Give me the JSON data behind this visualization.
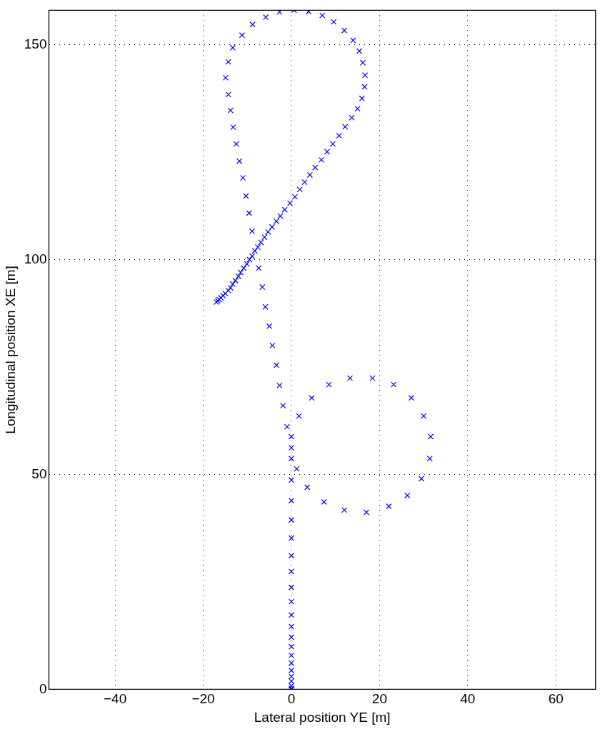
{
  "chart_data": {
    "type": "scatter",
    "xlabel": "Lateral position YE [m]",
    "ylabel": "Longitudinal position XE [m]",
    "xlim": [
      -55,
      69
    ],
    "xticks": [
      -40,
      -20,
      0,
      20,
      40,
      60
    ],
    "ylim": [
      0,
      158
    ],
    "yticks": [
      0,
      50,
      100,
      150
    ],
    "grid": true,
    "marker": "cross",
    "legend": false,
    "series": [
      {
        "color": "#0000ff",
        "x": [
          0,
          0,
          0,
          0,
          0,
          0,
          0,
          0,
          0,
          0,
          0,
          0,
          0,
          0,
          0,
          0,
          0,
          0,
          0,
          0,
          1.2,
          3.6,
          7.4,
          12.0,
          17.0,
          22.1,
          26.3,
          29.5,
          31.4,
          31.6,
          30.0,
          27.2,
          23.2,
          18.4,
          13.3,
          8.5,
          4.6,
          1.7,
          0,
          0,
          0,
          -1.0,
          -1.9,
          -2.7,
          -3.4,
          -4.3,
          -5.0,
          -5.9,
          -6.6,
          -7.4,
          -8.9,
          -9.6,
          -10.3,
          -11.0,
          -11.8,
          -12.5,
          -13.2,
          -13.8,
          -14.3,
          -14.9,
          -14.3,
          -13.3,
          -11.2,
          -8.8,
          -5.8,
          -2.7,
          0.6,
          3.9,
          7.0,
          9.6,
          12.0,
          14.0,
          15.4,
          16.2,
          16.7,
          16.6,
          16.0,
          15.0,
          13.7,
          12.2,
          10.8,
          9.4,
          8.1,
          6.8,
          5.4,
          4.2,
          3.0,
          1.9,
          0.8,
          -0.3,
          -1.5,
          -2.5,
          -3.4,
          -4.4,
          -5.3,
          -6.1,
          -6.9,
          -7.6,
          -8.3,
          -8.9,
          -9.5,
          -10.1,
          -10.8,
          -11.5,
          -12.0,
          -12.7,
          -13.3,
          -13.8,
          -14.3,
          -15.0,
          -15.5,
          -16.0,
          -16.4,
          -16.7,
          -17.0
        ],
        "values": [
          0,
          0.2,
          0.8,
          1.9,
          3.0,
          4.4,
          6.1,
          7.9,
          9.9,
          12.1,
          14.6,
          17.3,
          20.4,
          23.7,
          27.4,
          31.1,
          35.2,
          39.4,
          43.9,
          48.7,
          51.3,
          47.0,
          43.6,
          41.7,
          41.2,
          42.6,
          45.1,
          49.0,
          53.7,
          58.8,
          63.6,
          67.8,
          70.9,
          72.4,
          72.4,
          70.9,
          67.8,
          63.6,
          53.7,
          56.2,
          58.8,
          61.1,
          66.0,
          70.7,
          75.4,
          80.0,
          84.5,
          89.0,
          93.6,
          98.0,
          106.6,
          110.8,
          114.8,
          119.0,
          122.9,
          126.9,
          130.8,
          134.7,
          138.4,
          142.3,
          146.0,
          149.3,
          152.2,
          154.7,
          156.4,
          157.6,
          158.0,
          157.7,
          156.8,
          155.3,
          153.3,
          151.0,
          148.5,
          145.8,
          142.9,
          140.2,
          137.5,
          135.1,
          133.0,
          130.9,
          128.8,
          126.9,
          125.1,
          123.2,
          121.4,
          119.7,
          118.0,
          116.3,
          114.6,
          113.1,
          111.6,
          110.1,
          108.9,
          107.6,
          106.4,
          105.2,
          104.0,
          102.9,
          102.0,
          100.8,
          100.0,
          99.0,
          98.0,
          97.0,
          96.1,
          95.1,
          94.3,
          93.4,
          92.8,
          92.1,
          91.6,
          91.1,
          90.7,
          90.4,
          90.1
        ]
      }
    ]
  }
}
